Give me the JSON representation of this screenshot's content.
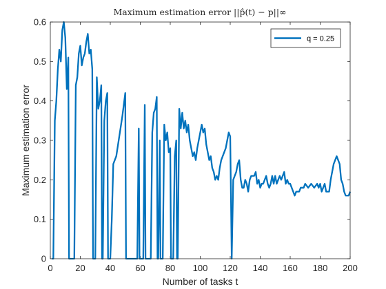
{
  "chart_data": {
    "type": "line",
    "title": "Maximum estimation error ||p̂(t) − p||∞",
    "xlabel": "Number of tasks t",
    "ylabel": "Maximum estimation error",
    "xlim": [
      0,
      200
    ],
    "ylim": [
      0,
      0.6
    ],
    "xticks": [
      0,
      20,
      40,
      60,
      80,
      100,
      120,
      140,
      160,
      180,
      200
    ],
    "yticks": [
      0,
      0.1,
      0.2,
      0.3,
      0.4,
      0.5,
      0.6
    ],
    "xtick_labels": [
      "0",
      "20",
      "40",
      "60",
      "80",
      "100",
      "120",
      "140",
      "160",
      "180",
      "200"
    ],
    "ytick_labels": [
      "0",
      "0.1",
      "0.2",
      "0.3",
      "0.4",
      "0.5",
      "0.6"
    ],
    "grid": false,
    "legend_position": "top-right",
    "series": [
      {
        "name": "q = 0.25",
        "color": "#0072BD",
        "points": [
          [
            1,
            0
          ],
          [
            2,
            0
          ],
          [
            3,
            0.35
          ],
          [
            4,
            0.4
          ],
          [
            5,
            0.48
          ],
          [
            6,
            0.53
          ],
          [
            7,
            0.5
          ],
          [
            8,
            0.58
          ],
          [
            9,
            0.6
          ],
          [
            10,
            0.56
          ],
          [
            11,
            0.43
          ],
          [
            12,
            0.51
          ],
          [
            12.5,
            0
          ],
          [
            15,
            0
          ],
          [
            16,
            0
          ],
          [
            17,
            0.44
          ],
          [
            18,
            0.46
          ],
          [
            19,
            0.52
          ],
          [
            20,
            0.54
          ],
          [
            21,
            0.49
          ],
          [
            22,
            0.51
          ],
          [
            23,
            0.52
          ],
          [
            24,
            0.55
          ],
          [
            25,
            0.57
          ],
          [
            26,
            0.52
          ],
          [
            27,
            0.53
          ],
          [
            28,
            0.48
          ],
          [
            28.5,
            0
          ],
          [
            30,
            0
          ],
          [
            31,
            0.46
          ],
          [
            32,
            0.38
          ],
          [
            33,
            0.4
          ],
          [
            34,
            0.44
          ],
          [
            34.5,
            0
          ],
          [
            35,
            0
          ],
          [
            36,
            0.35
          ],
          [
            37,
            0.4
          ],
          [
            38,
            0.42
          ],
          [
            38.5,
            0
          ],
          [
            40,
            0
          ],
          [
            41,
            0.1
          ],
          [
            42,
            0.24
          ],
          [
            43,
            0.25
          ],
          [
            44,
            0.26
          ],
          [
            46,
            0.31
          ],
          [
            48,
            0.36
          ],
          [
            50,
            0.42
          ],
          [
            50.5,
            0
          ],
          [
            58,
            0
          ],
          [
            59,
            0.33
          ],
          [
            59.5,
            0
          ],
          [
            62,
            0
          ],
          [
            63,
            0.39
          ],
          [
            63.5,
            0
          ],
          [
            67,
            0
          ],
          [
            68,
            0.32
          ],
          [
            69,
            0.37
          ],
          [
            70,
            0.38
          ],
          [
            71,
            0.41
          ],
          [
            71.5,
            0
          ],
          [
            72,
            0
          ],
          [
            73,
            0.3
          ],
          [
            73.5,
            0
          ],
          [
            75,
            0
          ],
          [
            76,
            0.34
          ],
          [
            77,
            0.3
          ],
          [
            78,
            0.32
          ],
          [
            79,
            0.27
          ],
          [
            80,
            0.28
          ],
          [
            80.5,
            0
          ],
          [
            82,
            0
          ],
          [
            83,
            0.26
          ],
          [
            84,
            0.3
          ],
          [
            84.5,
            0
          ],
          [
            85,
            0
          ],
          [
            86,
            0.38
          ],
          [
            87,
            0.33
          ],
          [
            88,
            0.37
          ],
          [
            89,
            0.33
          ],
          [
            90,
            0.35
          ],
          [
            91,
            0.32
          ],
          [
            92,
            0.34
          ],
          [
            93,
            0.3
          ],
          [
            94,
            0.28
          ],
          [
            95,
            0.26
          ],
          [
            96,
            0.27
          ],
          [
            97,
            0.25
          ],
          [
            98,
            0.28
          ],
          [
            99,
            0.3
          ],
          [
            100,
            0.32
          ],
          [
            101,
            0.34
          ],
          [
            102,
            0.32
          ],
          [
            103,
            0.33
          ],
          [
            104,
            0.29
          ],
          [
            105,
            0.27
          ],
          [
            106,
            0.25
          ],
          [
            107,
            0.26
          ],
          [
            108,
            0.23
          ],
          [
            109,
            0.22
          ],
          [
            110,
            0.2
          ],
          [
            111,
            0.21
          ],
          [
            112,
            0.2
          ],
          [
            113,
            0.23
          ],
          [
            114,
            0.25
          ],
          [
            115,
            0.26
          ],
          [
            116,
            0.27
          ],
          [
            117,
            0.28
          ],
          [
            118,
            0.3
          ],
          [
            119,
            0.32
          ],
          [
            120,
            0.31
          ],
          [
            121,
            0
          ],
          [
            122,
            0.2
          ],
          [
            123,
            0.21
          ],
          [
            124,
            0.22
          ],
          [
            125,
            0.24
          ],
          [
            126,
            0.25
          ],
          [
            127,
            0.2
          ],
          [
            128,
            0.18
          ],
          [
            129,
            0.18
          ],
          [
            130,
            0.2
          ],
          [
            131,
            0.19
          ],
          [
            132,
            0.17
          ],
          [
            133,
            0.2
          ],
          [
            134,
            0.21
          ],
          [
            135,
            0.21
          ],
          [
            136,
            0.21
          ],
          [
            137,
            0.22
          ],
          [
            138,
            0.19
          ],
          [
            139,
            0.2
          ],
          [
            140,
            0.18
          ],
          [
            141,
            0.19
          ],
          [
            142,
            0.19
          ],
          [
            143,
            0.2
          ],
          [
            144,
            0.21
          ],
          [
            145,
            0.19
          ],
          [
            146,
            0.18
          ],
          [
            147,
            0.19
          ],
          [
            148,
            0.21
          ],
          [
            149,
            0.19
          ],
          [
            150,
            0.21
          ],
          [
            151,
            0.19
          ],
          [
            152,
            0.2
          ],
          [
            153,
            0.21
          ],
          [
            154,
            0.2
          ],
          [
            155,
            0.21
          ],
          [
            156,
            0.22
          ],
          [
            157,
            0.19
          ],
          [
            158,
            0.2
          ],
          [
            159,
            0.19
          ],
          [
            160,
            0.19
          ],
          [
            161,
            0.18
          ],
          [
            162,
            0.17
          ],
          [
            163,
            0.16
          ],
          [
            164,
            0.17
          ],
          [
            165,
            0.17
          ],
          [
            166,
            0.17
          ],
          [
            167,
            0.18
          ],
          [
            168,
            0.18
          ],
          [
            169,
            0.18
          ],
          [
            170,
            0.19
          ],
          [
            172,
            0.18
          ],
          [
            174,
            0.19
          ],
          [
            176,
            0.18
          ],
          [
            178,
            0.19
          ],
          [
            179,
            0.18
          ],
          [
            180,
            0.19
          ],
          [
            181,
            0.17
          ],
          [
            182,
            0.18
          ],
          [
            183,
            0.19
          ],
          [
            184,
            0.17
          ],
          [
            185,
            0.17
          ],
          [
            186,
            0.17
          ],
          [
            187,
            0.2
          ],
          [
            188,
            0.22
          ],
          [
            189,
            0.24
          ],
          [
            190,
            0.25
          ],
          [
            191,
            0.26
          ],
          [
            192,
            0.25
          ],
          [
            193,
            0.24
          ],
          [
            194,
            0.2
          ],
          [
            195,
            0.19
          ],
          [
            196,
            0.17
          ],
          [
            197,
            0.16
          ],
          [
            198,
            0.16
          ],
          [
            199,
            0.16
          ],
          [
            200,
            0.17
          ]
        ]
      }
    ]
  }
}
